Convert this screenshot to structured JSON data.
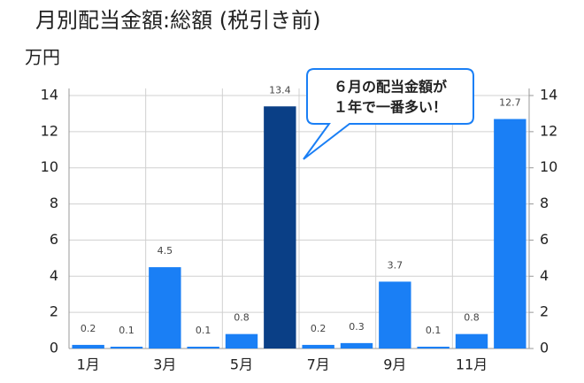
{
  "chart_data": {
    "type": "bar",
    "title": "月別配当金額:総額 (税引き前)",
    "y_label": "万円",
    "categories": [
      "1月",
      null,
      "3月",
      null,
      "5月",
      null,
      "7月",
      null,
      "9月",
      null,
      "11月",
      null
    ],
    "values": [
      0.2,
      0.1,
      4.5,
      0.1,
      0.8,
      13.4,
      0.2,
      0.3,
      3.7,
      0.1,
      0.8,
      12.7
    ],
    "colors": [
      "#1a7ff5",
      "#1a7ff5",
      "#1a7ff5",
      "#1a7ff5",
      "#1a7ff5",
      "#0a3f86",
      "#1a7ff5",
      "#1a7ff5",
      "#1a7ff5",
      "#1a7ff5",
      "#1a7ff5",
      "#1a7ff5"
    ],
    "ylim": [
      0,
      14
    ],
    "yticks": [
      0,
      2,
      4,
      6,
      8,
      10,
      12,
      14
    ],
    "y2lim": [
      0,
      14
    ],
    "y2ticks": [
      0,
      2,
      4,
      6,
      8,
      10,
      12,
      14
    ],
    "grid": true,
    "annotations": [
      "６月の配当金額が",
      "１年で一番多い！"
    ]
  }
}
